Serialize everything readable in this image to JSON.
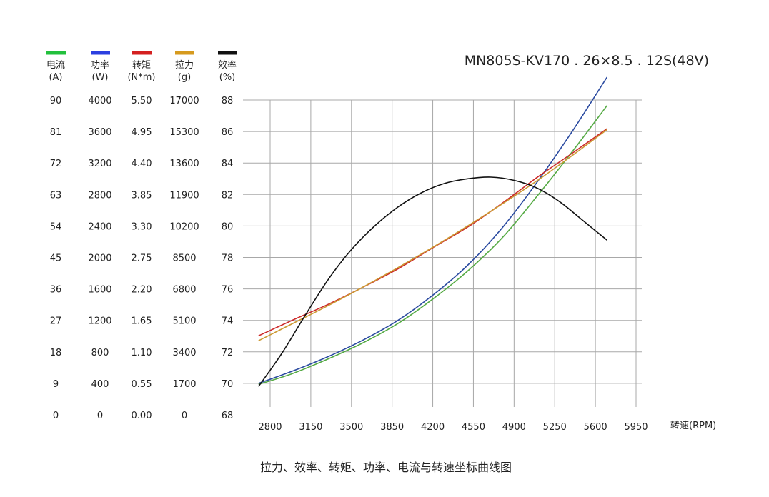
{
  "chart_data": {
    "type": "line",
    "title": "MN805S-KV170 . 26×8.5 . 12S(48V)",
    "caption": "拉力、效率、转矩、功率、电流与转速坐标曲线图",
    "xlabel": "转速(RPM)",
    "xlim": [
      2800,
      5950
    ],
    "x_ticks": [
      2800,
      3150,
      3500,
      3850,
      4200,
      4550,
      4900,
      5250,
      5600,
      5950
    ],
    "grid": true,
    "axes": [
      {
        "key": "current",
        "name": "电流",
        "unit": "(A)",
        "color": "#22c03c",
        "ylim": [
          0,
          90
        ],
        "ticks": [
          "0",
          "9",
          "18",
          "27",
          "36",
          "45",
          "54",
          "63",
          "72",
          "81",
          "90"
        ]
      },
      {
        "key": "power",
        "name": "功率",
        "unit": "(W)",
        "color": "#2b3fe0",
        "ylim": [
          0,
          4000
        ],
        "ticks": [
          "0",
          "400",
          "800",
          "1200",
          "1600",
          "2000",
          "2400",
          "2800",
          "3200",
          "3600",
          "4000"
        ]
      },
      {
        "key": "torque",
        "name": "转矩",
        "unit": "(N*m)",
        "color": "#d42020",
        "ylim": [
          0,
          5.5
        ],
        "ticks": [
          "0.00",
          "0.55",
          "1.10",
          "1.65",
          "2.20",
          "2.75",
          "3.30",
          "3.85",
          "4.40",
          "4.95",
          "5.50"
        ]
      },
      {
        "key": "thrust",
        "name": "拉力",
        "unit": "(g)",
        "color": "#d69a1e",
        "ylim": [
          0,
          17000
        ],
        "ticks": [
          "0",
          "1700",
          "3400",
          "5100",
          "6800",
          "8500",
          "10200",
          "11900",
          "13600",
          "15300",
          "17000"
        ]
      },
      {
        "key": "efficiency",
        "name": "效率",
        "unit": "(%)",
        "color": "#111111",
        "ylim": [
          68,
          88
        ],
        "ticks": [
          "68",
          "70",
          "72",
          "74",
          "76",
          "78",
          "80",
          "82",
          "84",
          "86",
          "88"
        ]
      }
    ],
    "series": [
      {
        "axis": "current",
        "color": "#55aa44",
        "x": [
          2700,
          3000,
          3300,
          3600,
          3900,
          4200,
          4500,
          4800,
          5100,
          5400,
          5700
        ],
        "y": [
          8.7,
          11.9,
          16.0,
          20.6,
          26.1,
          33.1,
          41.1,
          50.7,
          62.6,
          75.2,
          88.4
        ]
      },
      {
        "axis": "power",
        "color": "#2a4aa0",
        "x": [
          2700,
          3000,
          3300,
          3600,
          3900,
          4200,
          4500,
          4800,
          5100,
          5400,
          5700
        ],
        "y": [
          400,
          560,
          740,
          950,
          1200,
          1520,
          1900,
          2380,
          2960,
          3600,
          4290
        ]
      },
      {
        "axis": "torque",
        "color": "#cc2a2a",
        "x": [
          2700,
          3000,
          3300,
          3600,
          3900,
          4200,
          4500,
          4800,
          5100,
          5400,
          5700
        ],
        "y": [
          1.38,
          1.66,
          1.93,
          2.23,
          2.55,
          2.92,
          3.28,
          3.7,
          4.15,
          4.57,
          5.0
        ]
      },
      {
        "axis": "thrust",
        "color": "#cc9933",
        "x": [
          2700,
          3000,
          3300,
          3600,
          3900,
          4200,
          4500,
          4800,
          5100,
          5400,
          5700
        ],
        "y": [
          4000,
          4950,
          5900,
          6900,
          7950,
          9050,
          10200,
          11400,
          12650,
          14000,
          15400
        ]
      },
      {
        "axis": "efficiency",
        "color": "#111111",
        "x": [
          2700,
          2900,
          3100,
          3300,
          3500,
          3700,
          3900,
          4100,
          4300,
          4500,
          4700,
          4900,
          5100,
          5300,
          5500,
          5700
        ],
        "y": [
          69.8,
          71.9,
          74.3,
          76.6,
          78.5,
          80.0,
          81.2,
          82.1,
          82.7,
          83.0,
          83.1,
          82.9,
          82.4,
          81.5,
          80.3,
          79.1
        ]
      }
    ]
  }
}
